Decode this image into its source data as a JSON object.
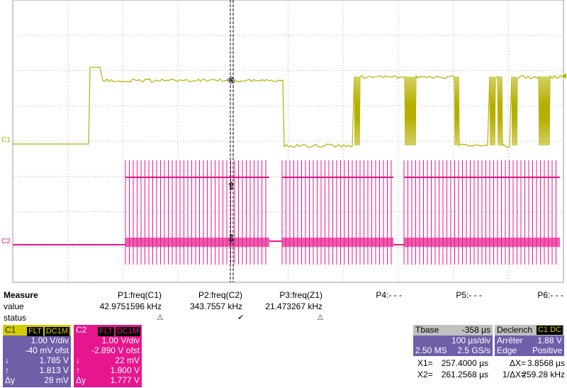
{
  "screen": {
    "channel_markers": [
      "C1",
      "C2"
    ],
    "measure": {
      "title": "Measure",
      "row_labels": [
        "value",
        "status"
      ],
      "columns": [
        {
          "param": "P1:freq(C1)",
          "value": "42.9751596 kHz"
        },
        {
          "param": "P2:freq(C2)",
          "value": "343.7557 kHz"
        },
        {
          "param": "P3:freq(Z1)",
          "value": "21.473267 kHz"
        },
        {
          "param": "P4:- - -"
        },
        {
          "param": "P5:- - -"
        },
        {
          "param": "P6:- - -"
        }
      ]
    },
    "channels": [
      {
        "label": "C1",
        "tags": [
          "FLT",
          "DC1M"
        ],
        "settings": [
          "1.00 V/div",
          "-40 mV ofst"
        ],
        "cursors": [
          {
            "symbol": "↓",
            "value": "1.785 V"
          },
          {
            "symbol": "↑",
            "value": "1.813 V"
          },
          {
            "symbol": "Δy",
            "value": "28 mV"
          }
        ]
      },
      {
        "label": "C2",
        "tags": [
          "FLT",
          "DC1M"
        ],
        "settings": [
          "1.00 V/div",
          "-2.890 V ofst"
        ],
        "cursors": [
          {
            "symbol": "↓",
            "value": "22 mV"
          },
          {
            "symbol": "↑",
            "value": "1.800 V"
          },
          {
            "symbol": "Δy",
            "value": "1.777 V"
          }
        ]
      }
    ],
    "timebase": {
      "title": "Tbase",
      "offset": "-358 µs",
      "rows": [
        [
          "",
          "100 µs/div"
        ],
        [
          "2.50 MS",
          "2.5 GS/s"
        ]
      ]
    },
    "trigger": {
      "title": "Declench",
      "tag": "C1 DC",
      "rows": [
        [
          "Arrêter",
          "1.88 V"
        ],
        [
          "Edge",
          "Positive"
        ]
      ]
    },
    "cursors": [
      [
        "X1=",
        "257.4000 µs",
        "ΔX=",
        "3.8568 µs"
      ],
      [
        "X2=",
        "261.2568 µs",
        "1/ΔX=",
        "259.28 kHz"
      ]
    ]
  }
}
